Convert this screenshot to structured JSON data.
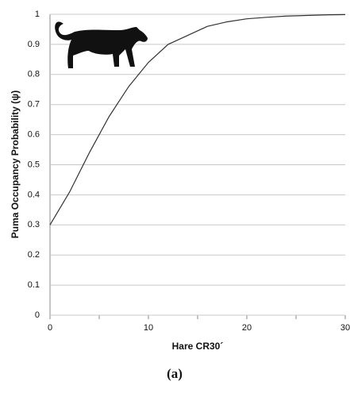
{
  "chart_data": {
    "type": "line",
    "x_label": "Hare CR30´",
    "y_label": "Puma Occupancy Probability (ψ)",
    "caption": "(a)",
    "series": [
      {
        "color": "#333333",
        "x": [
          0,
          2,
          4,
          6,
          8,
          10,
          12,
          14,
          16,
          18,
          20,
          22,
          24,
          26,
          28,
          30
        ],
        "values": [
          0.3,
          0.41,
          0.54,
          0.66,
          0.76,
          0.84,
          0.9,
          0.93,
          0.96,
          0.975,
          0.985,
          0.99,
          0.994,
          0.996,
          0.998,
          0.999
        ]
      }
    ],
    "xlim": [
      0,
      30
    ],
    "xticks": [
      0,
      10,
      20,
      30
    ],
    "xminorticks": [
      5,
      15,
      25
    ],
    "ylim": [
      0,
      1
    ],
    "yticks": [
      0,
      0.1,
      0.2,
      0.3,
      0.4,
      0.5,
      0.6,
      0.7,
      0.8,
      0.9,
      1
    ],
    "grid": true
  }
}
